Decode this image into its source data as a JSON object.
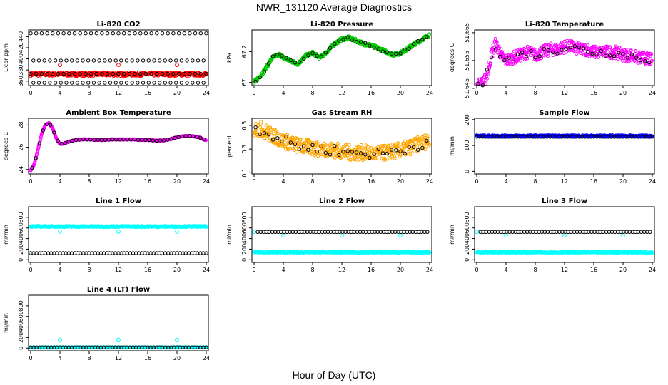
{
  "page": {
    "title": "NWR_131120  Average Diagnostics",
    "xlabel": "Hour of Day (UTC)"
  },
  "colors": {
    "black": "#000000",
    "red": "#ff0000",
    "green": "#00cc00",
    "magenta": "#ff00ff",
    "orange": "#ffa500",
    "blue": "#0000ff",
    "cyan": "#00ffff"
  },
  "chart_data": [
    {
      "type": "scatter",
      "title": "Li-820 CO2",
      "ylabel": "Licor ppm",
      "x_ticks": [
        0,
        4,
        8,
        12,
        16,
        20,
        24
      ],
      "y_ticks": [
        360,
        380,
        400,
        420,
        440
      ],
      "xlim": [
        0,
        24
      ],
      "ylim": [
        352,
        452
      ],
      "series": [
        {
          "color": "red",
          "style": "band",
          "low": 369,
          "high": 376
        },
        {
          "color": "black",
          "style": "levels",
          "levels": [
            446,
            397,
            373,
            357
          ],
          "step": 0.75
        },
        {
          "color": "red",
          "style": "points",
          "points": [
            [
              4,
              389
            ],
            [
              12,
              389
            ],
            [
              20,
              389
            ]
          ]
        }
      ]
    },
    {
      "type": "scatter",
      "title": "Li-820 Pressure",
      "ylabel": "kPa",
      "x_ticks": [
        0,
        4,
        8,
        12,
        16,
        20,
        24
      ],
      "y_ticks": [
        67.0,
        67.2
      ],
      "xlim": [
        0,
        24
      ],
      "ylim": [
        66.98,
        67.34
      ],
      "series": [
        {
          "color": "green",
          "style": "curve",
          "spread": 0.022,
          "x": [
            0,
            1,
            2,
            2.5,
            3,
            3.5,
            4,
            5,
            6,
            7,
            8,
            9,
            10,
            11,
            12,
            13,
            14,
            15,
            16,
            17,
            18,
            19,
            20,
            21,
            22,
            23,
            24
          ],
          "y": [
            67.0,
            67.05,
            67.12,
            67.16,
            67.17,
            67.18,
            67.16,
            67.14,
            67.12,
            67.17,
            67.19,
            67.16,
            67.2,
            67.25,
            67.28,
            67.29,
            67.27,
            67.25,
            67.24,
            67.22,
            67.2,
            67.18,
            67.19,
            67.22,
            67.25,
            67.28,
            67.31
          ]
        },
        {
          "color": "black",
          "style": "sparse-curve",
          "step": 0.6
        }
      ]
    },
    {
      "type": "scatter",
      "title": "Li-820 Temperature",
      "ylabel": "degrees C",
      "x_ticks": [
        0,
        4,
        8,
        12,
        16,
        20,
        24
      ],
      "y_ticks": [
        51.645,
        51.655,
        51.665
      ],
      "y_tick_labels": [
        "51.645",
        "51.655",
        "51.665"
      ],
      "xlim": [
        0,
        24
      ],
      "ylim": [
        51.646,
        51.666
      ],
      "series": [
        {
          "color": "magenta",
          "style": "curve",
          "spread": 0.0045,
          "x": [
            0,
            1,
            1.5,
            2,
            2.5,
            3,
            3.5,
            4,
            5,
            6,
            7,
            8,
            9,
            10,
            11,
            12,
            13,
            14,
            15,
            16,
            17,
            18,
            19,
            20,
            21,
            22,
            23,
            24
          ],
          "y": [
            51.646,
            51.647,
            51.651,
            51.657,
            51.661,
            51.659,
            51.656,
            51.655,
            51.656,
            51.657,
            51.658,
            51.657,
            51.658,
            51.659,
            51.659,
            51.66,
            51.66,
            51.659,
            51.659,
            51.658,
            51.658,
            51.658,
            51.658,
            51.657,
            51.657,
            51.656,
            51.656,
            51.655
          ]
        },
        {
          "color": "black",
          "style": "sparse-curve",
          "step": 0.6
        }
      ]
    },
    {
      "type": "scatter",
      "title": "Ambient Box Temperature",
      "ylabel": "degrees C",
      "x_ticks": [
        0,
        4,
        8,
        12,
        16,
        20,
        24
      ],
      "y_ticks": [
        24,
        26,
        28
      ],
      "xlim": [
        0,
        24
      ],
      "ylim": [
        23.6,
        28.6
      ],
      "series": [
        {
          "color": "magenta",
          "style": "curve",
          "spread": 0.05,
          "x": [
            0,
            0.5,
            1,
            1.5,
            2,
            2.5,
            3,
            3.5,
            4,
            4.5,
            5,
            6,
            7,
            8,
            9,
            10,
            11,
            12,
            13,
            14,
            15,
            16,
            17,
            18,
            19,
            20,
            21,
            22,
            23,
            24
          ],
          "y": [
            23.9,
            24.5,
            25.8,
            27.2,
            28.0,
            28.2,
            27.7,
            26.8,
            26.3,
            26.3,
            26.45,
            26.65,
            26.7,
            26.7,
            26.65,
            26.65,
            26.7,
            26.7,
            26.7,
            26.7,
            26.65,
            26.65,
            26.6,
            26.6,
            26.7,
            26.9,
            27.0,
            27.0,
            26.9,
            26.6
          ]
        },
        {
          "color": "black",
          "style": "sparse-curve",
          "step": 0.5
        }
      ]
    },
    {
      "type": "scatter",
      "title": "Gas Stream RH",
      "ylabel": "percent",
      "x_ticks": [
        0,
        4,
        8,
        12,
        16,
        20,
        24
      ],
      "y_ticks": [
        0.1,
        0.3,
        0.5
      ],
      "xlim": [
        0,
        24
      ],
      "ylim": [
        0.09,
        0.56
      ],
      "series": [
        {
          "color": "orange",
          "style": "curve",
          "spread": 0.13,
          "x": [
            0,
            1,
            2,
            3,
            4,
            5,
            6,
            7,
            8,
            9,
            10,
            11,
            12,
            13,
            14,
            15,
            16,
            17,
            18,
            19,
            20,
            21,
            22,
            23,
            24
          ],
          "y": [
            0.47,
            0.47,
            0.43,
            0.4,
            0.37,
            0.35,
            0.33,
            0.32,
            0.31,
            0.3,
            0.3,
            0.29,
            0.28,
            0.27,
            0.27,
            0.27,
            0.26,
            0.26,
            0.27,
            0.28,
            0.29,
            0.31,
            0.33,
            0.35,
            0.38
          ]
        },
        {
          "color": "black",
          "style": "sparse-curve",
          "step": 0.6
        }
      ]
    },
    {
      "type": "scatter",
      "title": "Sample Flow",
      "ylabel": "ml/min",
      "x_ticks": [
        0,
        4,
        8,
        12,
        16,
        20,
        24
      ],
      "y_ticks": [
        0,
        100,
        200
      ],
      "xlim": [
        0,
        24
      ],
      "ylim": [
        -10,
        205
      ],
      "series": [
        {
          "color": "blue",
          "style": "band",
          "low": 133,
          "high": 140
        },
        {
          "color": "black",
          "style": "levels",
          "levels": [
            134
          ],
          "step": 0.4
        }
      ]
    },
    {
      "type": "scatter",
      "title": "Line 1 Flow",
      "ylabel": "ml/min",
      "x_ticks": [
        0,
        4,
        8,
        12,
        16,
        20,
        24
      ],
      "y_ticks": [
        0,
        200,
        400,
        600,
        800
      ],
      "xlim": [
        0,
        24
      ],
      "ylim": [
        -50,
        1000
      ],
      "series": [
        {
          "color": "cyan",
          "style": "band",
          "low": 615,
          "high": 640
        },
        {
          "color": "cyan",
          "style": "points",
          "points": [
            [
              4,
              530
            ],
            [
              12,
              530
            ],
            [
              20,
              530
            ],
            [
              0,
              125
            ]
          ]
        },
        {
          "color": "black",
          "style": "levels",
          "levels": [
            125
          ],
          "step": 0.4
        }
      ]
    },
    {
      "type": "scatter",
      "title": "Line 2 Flow",
      "ylabel": "ml/min",
      "x_ticks": [
        0,
        4,
        8,
        12,
        16,
        20,
        24
      ],
      "y_ticks": [
        0,
        200,
        400,
        600,
        800
      ],
      "xlim": [
        0,
        24
      ],
      "ylim": [
        -50,
        1000
      ],
      "series": [
        {
          "color": "cyan",
          "style": "band",
          "low": 130,
          "high": 150
        },
        {
          "color": "cyan",
          "style": "points",
          "points": [
            [
              0,
              525
            ],
            [
              4,
              460
            ],
            [
              12,
              460
            ],
            [
              20,
              460
            ]
          ]
        },
        {
          "color": "black",
          "style": "levels",
          "levels": [
            525
          ],
          "step": 0.4,
          "from": 0.5
        }
      ]
    },
    {
      "type": "scatter",
      "title": "Line 3 Flow",
      "ylabel": "ml/min",
      "x_ticks": [
        0,
        4,
        8,
        12,
        16,
        20,
        24
      ],
      "y_ticks": [
        0,
        200,
        400,
        600,
        800
      ],
      "xlim": [
        0,
        24
      ],
      "ylim": [
        -50,
        1000
      ],
      "series": [
        {
          "color": "cyan",
          "style": "band",
          "low": 130,
          "high": 150
        },
        {
          "color": "cyan",
          "style": "points",
          "points": [
            [
              0,
              525
            ],
            [
              4,
              460
            ],
            [
              12,
              460
            ],
            [
              20,
              460
            ]
          ]
        },
        {
          "color": "black",
          "style": "levels",
          "levels": [
            525
          ],
          "step": 0.4,
          "from": 0.5
        }
      ]
    },
    {
      "type": "scatter",
      "title": "Line 4 (LT) Flow",
      "ylabel": "ml/min",
      "x_ticks": [
        0,
        4,
        8,
        12,
        16,
        20,
        24
      ],
      "y_ticks": [
        0,
        200,
        400,
        600,
        800
      ],
      "xlim": [
        0,
        24
      ],
      "ylim": [
        -50,
        1000
      ],
      "series": [
        {
          "color": "cyan",
          "style": "band",
          "low": 5,
          "high": 20
        },
        {
          "color": "cyan",
          "style": "points",
          "points": [
            [
              4,
              160
            ],
            [
              12,
              160
            ],
            [
              20,
              160
            ]
          ]
        },
        {
          "color": "black",
          "style": "levels",
          "levels": [
            15
          ],
          "step": 0.4
        }
      ]
    }
  ]
}
